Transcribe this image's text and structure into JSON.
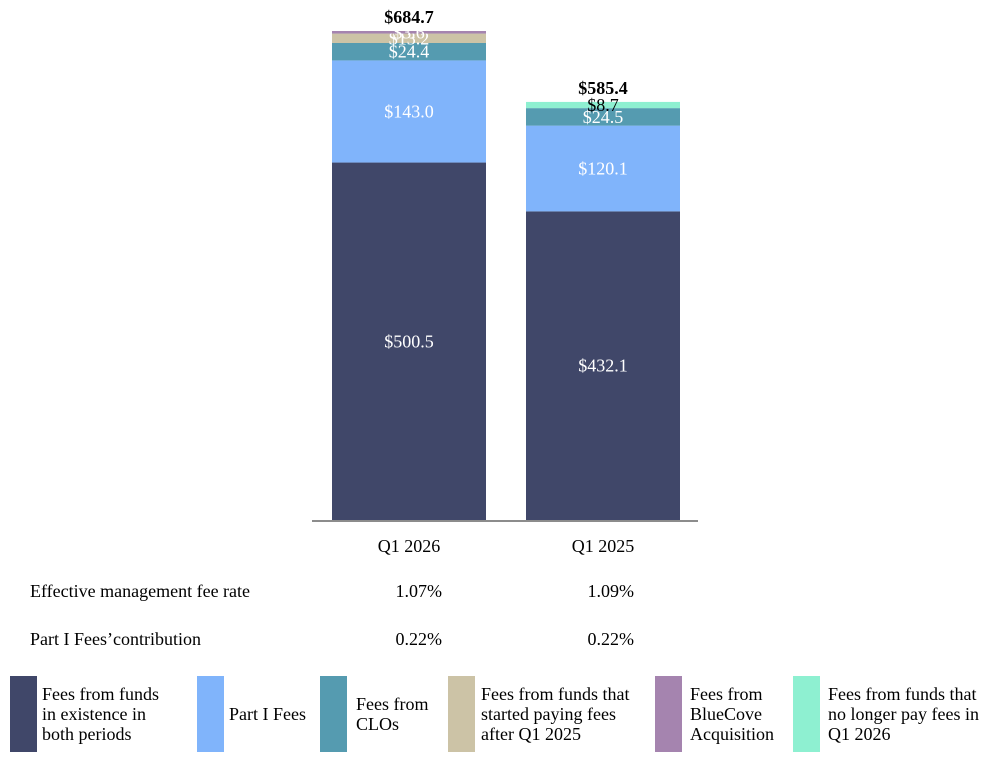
{
  "chart_data": {
    "type": "bar",
    "stacked": true,
    "categories": [
      "Q1 2026",
      "Q1 2025"
    ],
    "series": [
      {
        "name": "Fees from funds in existence in both periods",
        "color": "#404769",
        "values": [
          500.5,
          432.1
        ],
        "labels": [
          "$500.5",
          "$432.1"
        ]
      },
      {
        "name": "Part I Fees",
        "color": "#80b4fb",
        "values": [
          143.0,
          120.1
        ],
        "labels": [
          "$143.0",
          "$120.1"
        ]
      },
      {
        "name": "Fees from CLOs",
        "color": "#559bb0",
        "values": [
          24.4,
          24.5
        ],
        "labels": [
          "$24.4",
          "$24.5"
        ]
      },
      {
        "name": "Fees from funds that started paying fees after Q1 2025",
        "color": "#ccc3a6",
        "values": [
          13.2,
          0
        ],
        "labels": [
          "$13.2",
          ""
        ]
      },
      {
        "name": "Fees from BlueCove Acquisition",
        "color": "#a584af",
        "values": [
          3.6,
          0
        ],
        "labels": [
          "$3.6",
          ""
        ]
      },
      {
        "name": "Fees from funds that no longer pay fees in Q1 2026",
        "color": "#8ef0d1",
        "values": [
          0,
          8.7
        ],
        "labels": [
          "",
          "$8.7"
        ]
      }
    ],
    "totals": [
      "$684.7",
      "$585.4"
    ],
    "ylim": [
      0,
      684.7
    ],
    "grid": false
  },
  "table": {
    "rows": [
      {
        "label": "Effective management fee rate",
        "values": [
          "1.07%",
          "1.09%"
        ]
      },
      {
        "label": "Part I Fees’contribution",
        "values": [
          "0.22%",
          "0.22%"
        ]
      }
    ]
  },
  "legend": [
    {
      "text": "Fees from funds\nin existence in\nboth periods",
      "color": "#404769"
    },
    {
      "text": "Part I Fees",
      "color": "#80b4fb"
    },
    {
      "text": "Fees from\nCLOs",
      "color": "#559bb0"
    },
    {
      "text": "Fees from funds that\nstarted paying fees\nafter Q1 2025",
      "color": "#ccc3a6"
    },
    {
      "text": "Fees from\nBlueCove\nAcquisition",
      "color": "#a584af"
    },
    {
      "text": "Fees from funds that\nno longer pay fees in\nQ1 2026",
      "color": "#8ef0d1"
    }
  ]
}
